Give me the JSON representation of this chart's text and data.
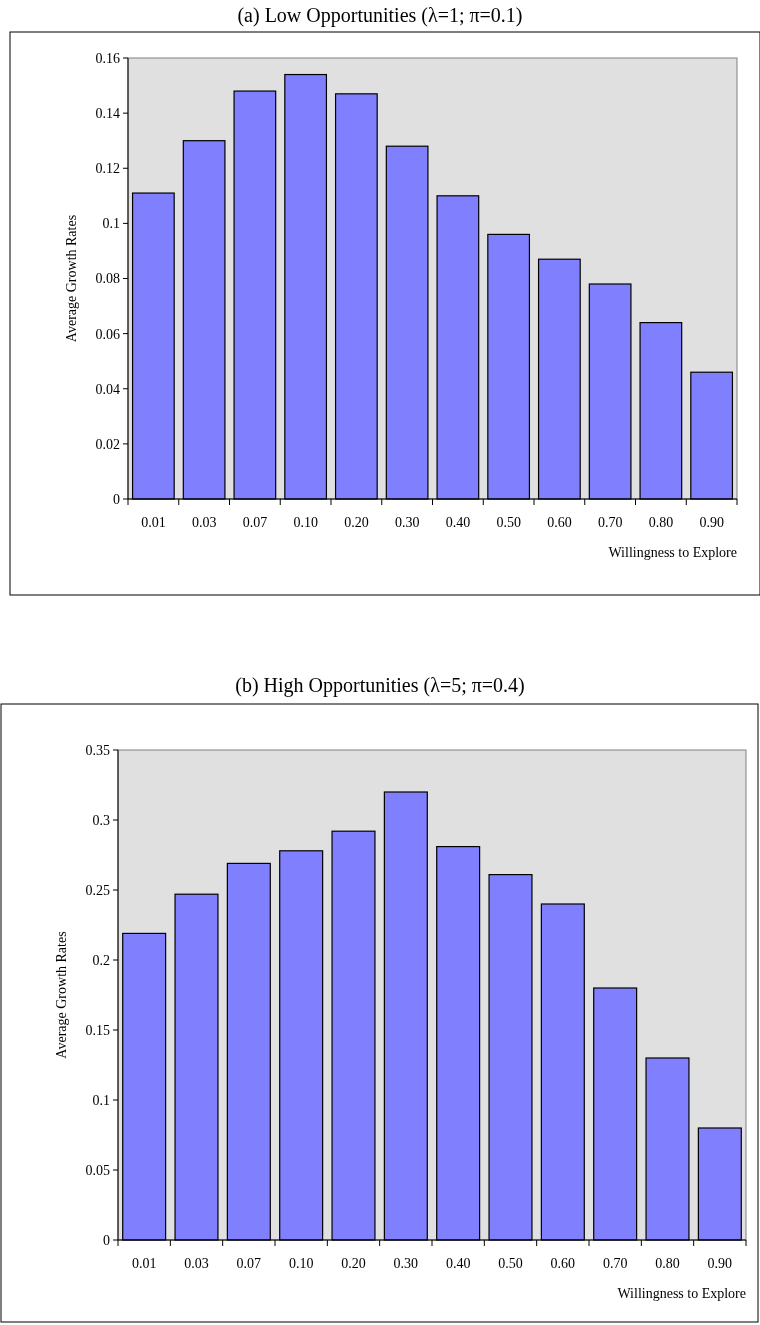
{
  "chart_data": [
    {
      "type": "bar",
      "title": "(a) Low Opportunities  (λ=1; π=0.1)",
      "xlabel": "Willingness to Explore",
      "ylabel": "Average Growth Rates",
      "categories": [
        "0.01",
        "0.03",
        "0.07",
        "0.10",
        "0.20",
        "0.30",
        "0.40",
        "0.50",
        "0.60",
        "0.70",
        "0.80",
        "0.90"
      ],
      "values": [
        0.111,
        0.13,
        0.148,
        0.154,
        0.147,
        0.128,
        0.11,
        0.096,
        0.087,
        0.078,
        0.064,
        0.046
      ],
      "color": "#8080ff",
      "ylim": [
        0,
        0.16
      ],
      "yticks": [
        0,
        0.02,
        0.04,
        0.06,
        0.08,
        0.1,
        0.12,
        0.14,
        0.16
      ]
    },
    {
      "type": "bar",
      "title": "(b) High Opportunities  (λ=5; π=0.4)",
      "xlabel": "Willingness to Explore",
      "ylabel": "Average Growth Rates",
      "categories": [
        "0.01",
        "0.03",
        "0.07",
        "0.10",
        "0.20",
        "0.30",
        "0.40",
        "0.50",
        "0.60",
        "0.70",
        "0.80",
        "0.90"
      ],
      "values": [
        0.219,
        0.247,
        0.269,
        0.278,
        0.292,
        0.32,
        0.281,
        0.261,
        0.24,
        0.18,
        0.13,
        0.08
      ],
      "color": "#8080ff",
      "ylim": [
        0,
        0.35
      ],
      "yticks": [
        0,
        0.05,
        0.1,
        0.15,
        0.2,
        0.25,
        0.3,
        0.35
      ]
    }
  ]
}
